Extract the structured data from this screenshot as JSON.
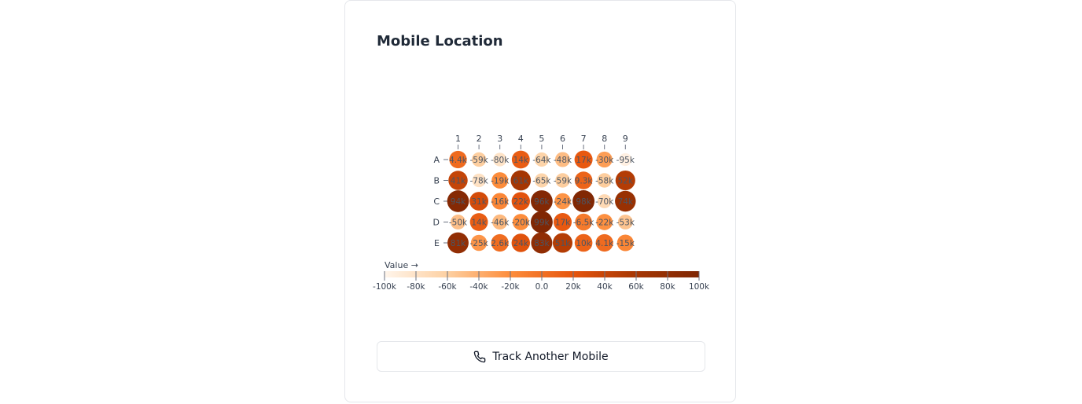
{
  "card": {
    "title": "Mobile Location",
    "button_label": "Track Another Mobile",
    "button_icon": "phone-icon"
  },
  "chart_data": {
    "type": "heatmap",
    "mark": "circle",
    "columns": [
      "1",
      "2",
      "3",
      "4",
      "5",
      "6",
      "7",
      "8",
      "9"
    ],
    "rows": [
      "A",
      "B",
      "C",
      "D",
      "E"
    ],
    "values": [
      [
        4400,
        -59000,
        -80000,
        14000,
        -64000,
        -48000,
        17000,
        -30000,
        -95000
      ],
      [
        41000,
        -78000,
        -19000,
        61000,
        -65000,
        -59000,
        9300,
        -58000,
        52000
      ],
      [
        94000,
        31000,
        -16000,
        22000,
        96000,
        -24000,
        98000,
        -70000,
        74000
      ],
      [
        -50000,
        14000,
        -46000,
        -20000,
        99000,
        17000,
        -6500,
        -22000,
        -53000
      ],
      [
        81000,
        -25000,
        2600,
        24000,
        83000,
        51000,
        10000,
        4100,
        -15000
      ]
    ],
    "labels": [
      [
        "4.4k",
        "-59k",
        "-80k",
        "14k",
        "-64k",
        "-48k",
        "17k",
        "-30k",
        "-95k"
      ],
      [
        "41k",
        "-78k",
        "-19k",
        "61k",
        "-65k",
        "-59k",
        "9.3k",
        "-58k",
        "52k"
      ],
      [
        "94k",
        "31k",
        "-16k",
        "22k",
        "96k",
        "-24k",
        "98k",
        "-70k",
        "74k"
      ],
      [
        "-50k",
        "14k",
        "-46k",
        "-20k",
        "99k",
        "17k",
        "-6.5k",
        "-22k",
        "-53k"
      ],
      [
        "81k",
        "-25k",
        "2.6k",
        "24k",
        "83k",
        "51k",
        "10k",
        "4.1k",
        "-15k"
      ]
    ],
    "legend": {
      "label": "Value →",
      "domain": [
        -100000,
        100000
      ],
      "ticks": [
        "-100k",
        "-80k",
        "-60k",
        "-40k",
        "-20k",
        "0.0",
        "20k",
        "40k",
        "60k",
        "80k",
        "100k"
      ],
      "scheme": "oranges",
      "colors": [
        "#fff5eb",
        "#fdd0a2",
        "#fd8d3c",
        "#e6550d",
        "#a63603",
        "#7f2704"
      ]
    }
  }
}
